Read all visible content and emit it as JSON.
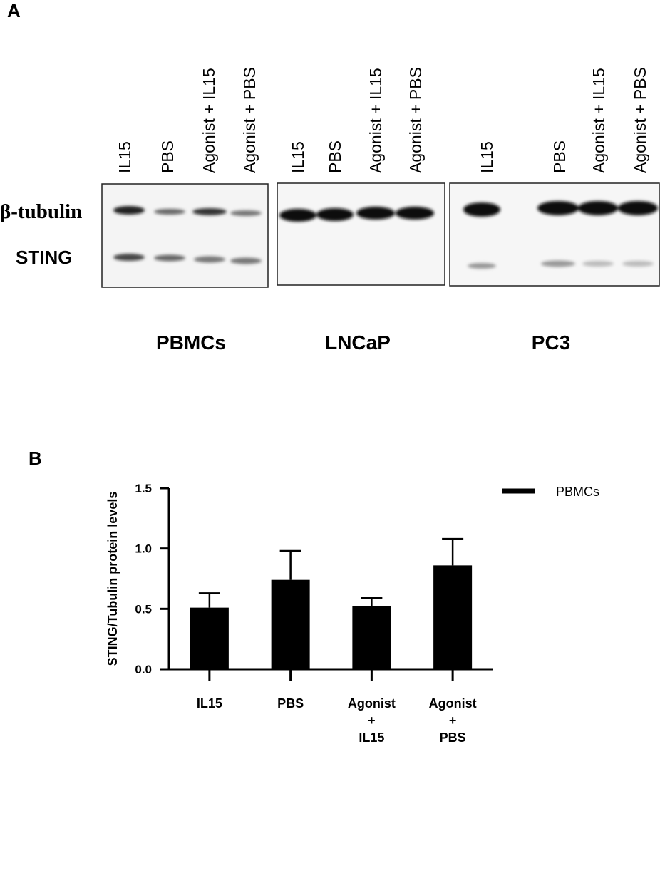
{
  "panel_a": {
    "label": "A",
    "row_labels": [
      "β-tubulin",
      "STING"
    ],
    "blots": [
      {
        "name": "PBMCs",
        "lanes": [
          "IL15",
          "PBS",
          "Agonist + IL15",
          "Agonist + PBS"
        ]
      },
      {
        "name": "LNCaP",
        "lanes": [
          "IL15",
          "PBS",
          "Agonist + IL15",
          "Agonist + PBS"
        ]
      },
      {
        "name": "PC3",
        "lanes": [
          "IL15",
          "PBS",
          "Agonist + IL15",
          "Agonist + PBS"
        ]
      }
    ]
  },
  "chart_data": {
    "type": "bar",
    "panel_label": "B",
    "y_label": "STING/Tubulin protein levels",
    "categories": [
      "IL15",
      "PBS",
      "Agonist + IL15",
      "Agonist + PBS"
    ],
    "series": [
      {
        "name": "PBMCs",
        "color": "#000000",
        "values": [
          0.51,
          0.74,
          0.52,
          0.86
        ],
        "errors": [
          0.12,
          0.24,
          0.07,
          0.22
        ]
      }
    ],
    "ylim": [
      0,
      1.5
    ],
    "yticks": [
      {
        "value": 0,
        "label": "0.0"
      },
      {
        "value": 0.5,
        "label": "0.5"
      },
      {
        "value": 1,
        "label": "1.0"
      },
      1.5
    ],
    "legend": "upper right"
  }
}
